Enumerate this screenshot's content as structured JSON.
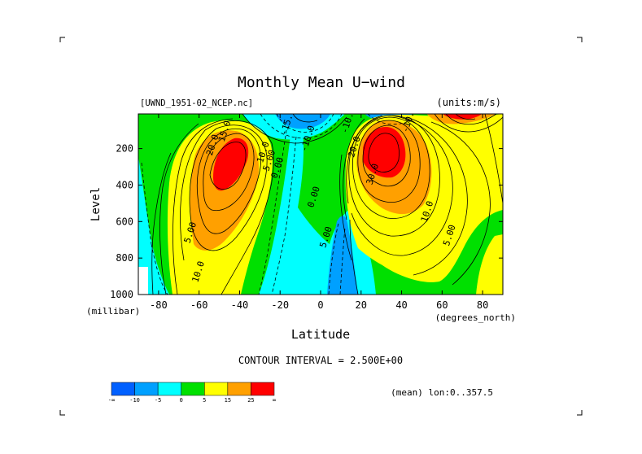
{
  "chart_data": {
    "type": "contour",
    "title": "Monthly Mean U−wind",
    "source_label": "[UWND_1951-02_NCEP.nc]",
    "units_label": "(units:m/s)",
    "xlabel": "Latitude",
    "x_unit_label": "(degrees_north)",
    "ylabel": "Level",
    "y_unit_label": "(millibar)",
    "xlim": [
      -90,
      90
    ],
    "ylim": [
      1000,
      10
    ],
    "x_ticks": [
      -80,
      -60,
      -40,
      -20,
      0,
      20,
      40,
      60,
      80
    ],
    "y_ticks": [
      200,
      400,
      600,
      800,
      1000
    ],
    "contour_interval_text": "CONTOUR INTERVAL = 2.500E+00",
    "contour_interval": 2.5,
    "footer_note": "(mean) lon:0..357.5",
    "colorbar": {
      "colors": [
        "#0060ff",
        "#00a0ff",
        "#00ffff",
        "#00e000",
        "#ffff00",
        "#ffa000",
        "#ff0000"
      ],
      "labels": [
        "-∞",
        "-10",
        "-5",
        "0",
        "5",
        "15",
        "25",
        "∞"
      ]
    },
    "jets": [
      {
        "lat": -45,
        "level": 200,
        "peak_value": 27.5
      },
      {
        "lat": 28,
        "level": 200,
        "peak_value": 32.5
      },
      {
        "lat": 70,
        "level": 50,
        "peak_value": 20
      }
    ],
    "contour_labels": [
      {
        "text": "15.0",
        "lat": -46,
        "level": 110
      },
      {
        "text": "20.0",
        "lat": -52,
        "level": 185
      },
      {
        "text": "10.0",
        "lat": -27,
        "level": 225
      },
      {
        "text": "5.00",
        "lat": -24,
        "level": 270
      },
      {
        "text": "0.00",
        "lat": -20,
        "level": 310
      },
      {
        "text": "0.00",
        "lat": -93,
        "level": 610
      },
      {
        "text": "5.00",
        "lat": -63,
        "level": 665
      },
      {
        "text": "10.0",
        "lat": -59,
        "level": 880
      },
      {
        "text": "0.00",
        "lat": -2,
        "level": 470
      },
      {
        "text": "5.00",
        "lat": 4,
        "level": 690
      },
      {
        "text": "20.0",
        "lat": 18,
        "level": 195
      },
      {
        "text": "30.0",
        "lat": 27,
        "level": 345
      },
      {
        "text": "10.0",
        "lat": 54,
        "level": 550
      },
      {
        "text": "5.00",
        "lat": 65,
        "level": 680
      },
      {
        "text": "-10.0",
        "lat": 15,
        "level": 50
      },
      {
        "text": "-15.0",
        "lat": -15,
        "level": 60
      },
      {
        "text": "-10.0",
        "lat": 45,
        "level": 45
      },
      {
        "text": "-10.0",
        "lat": -5,
        "level": 150
      }
    ]
  }
}
